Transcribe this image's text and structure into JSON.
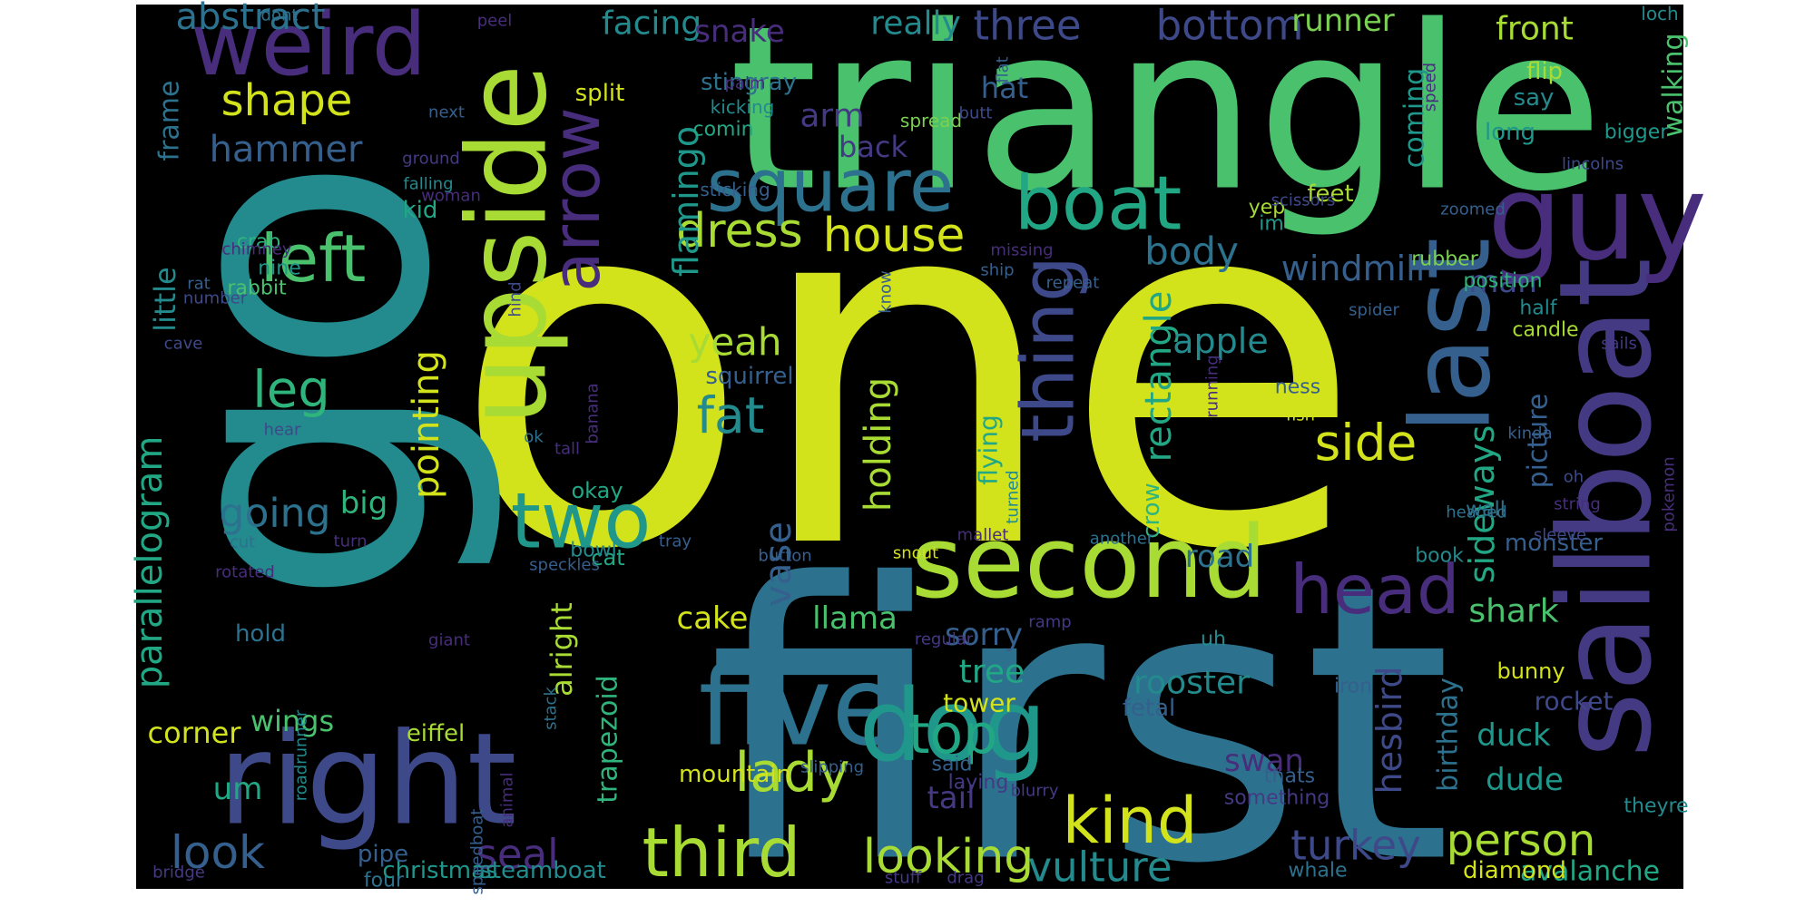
{
  "palette": {
    "background": "#000000",
    "page": "#ffffff",
    "words": [
      "#d2e21b",
      "#a8db34",
      "#7ad151",
      "#4ac16d",
      "#2fb47c",
      "#22a785",
      "#1f988b",
      "#238a8d",
      "#2c728e",
      "#355f8d",
      "#3e4989",
      "#443983",
      "#472d7b",
      "#48186a"
    ]
  },
  "words": [
    {
      "text": "one",
      "weight": 1.0,
      "color": 0
    },
    {
      "text": "first",
      "weight": 0.8,
      "color": 8
    },
    {
      "text": "go",
      "weight": 0.78,
      "color": 7
    },
    {
      "text": "triangle",
      "weight": 0.6,
      "color": 3
    },
    {
      "text": "upside",
      "weight": 0.35,
      "color": 1
    },
    {
      "text": "second",
      "weight": 0.28,
      "color": 1
    },
    {
      "text": "right",
      "weight": 0.3,
      "color": 10
    },
    {
      "text": "five",
      "weight": 0.27,
      "color": 8
    },
    {
      "text": "dog",
      "weight": 0.27,
      "color": 6
    },
    {
      "text": "sailboat",
      "weight": 0.27,
      "color": 11
    },
    {
      "text": "last",
      "weight": 0.27,
      "color": 9
    },
    {
      "text": "guy",
      "weight": 0.27,
      "color": 12
    },
    {
      "text": "weird",
      "weight": 0.2,
      "color": 12
    },
    {
      "text": "square",
      "weight": 0.17,
      "color": 8
    },
    {
      "text": "boat",
      "weight": 0.17,
      "color": 5
    },
    {
      "text": "two",
      "weight": 0.17,
      "color": 6
    },
    {
      "text": "thing",
      "weight": 0.17,
      "color": 10
    },
    {
      "text": "arrow",
      "weight": 0.17,
      "color": 12
    },
    {
      "text": "head",
      "weight": 0.16,
      "color": 12
    },
    {
      "text": "third",
      "weight": 0.15,
      "color": 1
    },
    {
      "text": "kind",
      "weight": 0.15,
      "color": 0
    },
    {
      "text": "top",
      "weight": 0.15,
      "color": 5
    },
    {
      "text": "left",
      "weight": 0.15,
      "color": 3
    },
    {
      "text": "house",
      "weight": 0.12,
      "color": 0
    },
    {
      "text": "dress",
      "weight": 0.12,
      "color": 1
    },
    {
      "text": "side",
      "weight": 0.12,
      "color": 0
    },
    {
      "text": "lady",
      "weight": 0.12,
      "color": 1
    },
    {
      "text": "looking",
      "weight": 0.12,
      "color": 1
    },
    {
      "text": "person",
      "weight": 0.11,
      "color": 1
    },
    {
      "text": "fat",
      "weight": 0.12,
      "color": 7
    },
    {
      "text": "leg",
      "weight": 0.12,
      "color": 4
    },
    {
      "text": "shape",
      "weight": 0.11,
      "color": 0
    },
    {
      "text": "look",
      "weight": 0.11,
      "color": 9
    },
    {
      "text": "vulture",
      "weight": 0.1,
      "color": 7
    },
    {
      "text": "turkey",
      "weight": 0.1,
      "color": 10
    },
    {
      "text": "three",
      "weight": 0.1,
      "color": 10
    },
    {
      "text": "bottom",
      "weight": 0.1,
      "color": 10
    },
    {
      "text": "seal",
      "weight": 0.1,
      "color": 12
    },
    {
      "text": "going",
      "weight": 0.09,
      "color": 8
    },
    {
      "text": "yeah",
      "weight": 0.09,
      "color": 1
    },
    {
      "text": "body",
      "weight": 0.09,
      "color": 8
    },
    {
      "text": "hammer",
      "weight": 0.09,
      "color": 9
    },
    {
      "text": "parallelogram",
      "weight": 0.09,
      "color": 5
    },
    {
      "text": "rectangle",
      "weight": 0.09,
      "color": 5
    },
    {
      "text": "holding",
      "weight": 0.09,
      "color": 1
    },
    {
      "text": "pointing",
      "weight": 0.09,
      "color": 0
    },
    {
      "text": "vase",
      "weight": 0.09,
      "color": 9
    },
    {
      "text": "flamingo",
      "weight": 0.09,
      "color": 6
    },
    {
      "text": "hesbird",
      "weight": 0.09,
      "color": 10
    },
    {
      "text": "sideways",
      "weight": 0.09,
      "color": 5
    },
    {
      "text": "windmill",
      "weight": 0.08,
      "color": 9
    },
    {
      "text": "apple",
      "weight": 0.08,
      "color": 7
    },
    {
      "text": "front",
      "weight": 0.08,
      "color": 1
    },
    {
      "text": "really",
      "weight": 0.08,
      "color": 7
    },
    {
      "text": "facing",
      "weight": 0.08,
      "color": 7
    },
    {
      "text": "snake",
      "weight": 0.08,
      "color": 12
    },
    {
      "text": "runner",
      "weight": 0.07,
      "color": 2
    },
    {
      "text": "arm",
      "weight": 0.08,
      "color": 11
    },
    {
      "text": "tree",
      "weight": 0.08,
      "color": 5
    },
    {
      "text": "rooster",
      "weight": 0.08,
      "color": 7
    },
    {
      "text": "shark",
      "weight": 0.08,
      "color": 3
    },
    {
      "text": "road",
      "weight": 0.07,
      "color": 8
    },
    {
      "text": "cake",
      "weight": 0.07,
      "color": 0
    },
    {
      "text": "llama",
      "weight": 0.07,
      "color": 3
    },
    {
      "text": "sorry",
      "weight": 0.07,
      "color": 9
    },
    {
      "text": "swan",
      "weight": 0.07,
      "color": 12
    },
    {
      "text": "duck",
      "weight": 0.07,
      "color": 6
    },
    {
      "text": "dude",
      "weight": 0.07,
      "color": 6
    },
    {
      "text": "big",
      "weight": 0.07,
      "color": 4
    },
    {
      "text": "um",
      "weight": 0.07,
      "color": 5
    },
    {
      "text": "man",
      "weight": 0.07,
      "color": 10
    },
    {
      "text": "tail",
      "weight": 0.07,
      "color": 11
    },
    {
      "text": "hat",
      "weight": 0.07,
      "color": 9
    },
    {
      "text": "back",
      "weight": 0.07,
      "color": 11
    },
    {
      "text": "wings",
      "weight": 0.06,
      "color": 3
    },
    {
      "text": "corner",
      "weight": 0.06,
      "color": 0
    },
    {
      "text": "avalanche",
      "weight": 0.06,
      "color": 5
    },
    {
      "text": "little",
      "weight": 0.06,
      "color": 7
    },
    {
      "text": "frame",
      "weight": 0.06,
      "color": 8
    },
    {
      "text": "alright",
      "weight": 0.07,
      "color": 1
    },
    {
      "text": "trapezoid",
      "weight": 0.06,
      "color": 4
    },
    {
      "text": "birthday",
      "weight": 0.06,
      "color": 8
    },
    {
      "text": "walking",
      "weight": 0.05,
      "color": 3
    },
    {
      "text": "coming",
      "weight": 0.05,
      "color": 6
    },
    {
      "text": "picture",
      "weight": 0.05,
      "color": 9
    },
    {
      "text": "flying",
      "weight": 0.05,
      "color": 5
    },
    {
      "text": "tower",
      "weight": 0.05,
      "color": 0
    },
    {
      "text": "diamond",
      "weight": 0.04,
      "color": 0
    },
    {
      "text": "christmas",
      "weight": 0.04,
      "color": 6
    },
    {
      "text": "steamboat",
      "weight": 0.04,
      "color": 7
    },
    {
      "text": "monster",
      "weight": 0.04,
      "color": 9
    },
    {
      "text": "squirrel",
      "weight": 0.04,
      "color": 9
    },
    {
      "text": "crow",
      "weight": 0.04,
      "color": 4
    },
    {
      "text": "fetal",
      "weight": 0.04,
      "color": 9
    },
    {
      "text": "rocket",
      "weight": 0.04,
      "color": 10
    },
    {
      "text": "mountain",
      "weight": 0.035,
      "color": 0
    },
    {
      "text": "split",
      "weight": 0.04,
      "color": 0
    },
    {
      "text": "stingray",
      "weight": 0.04,
      "color": 8
    },
    {
      "text": "flip",
      "weight": 0.04,
      "color": 1
    },
    {
      "text": "say",
      "weight": 0.04,
      "color": 7
    },
    {
      "text": "long",
      "weight": 0.04,
      "color": 6
    },
    {
      "text": "feet",
      "weight": 0.04,
      "color": 1
    },
    {
      "text": "kid",
      "weight": 0.035,
      "color": 5
    },
    {
      "text": "hold",
      "weight": 0.04,
      "color": 8
    },
    {
      "text": "eiffel",
      "weight": 0.035,
      "color": 1
    },
    {
      "text": "pipe",
      "weight": 0.04,
      "color": 9
    },
    {
      "text": "four",
      "weight": 0.03,
      "color": 8
    },
    {
      "text": "okay",
      "weight": 0.035,
      "color": 5
    },
    {
      "text": "cat",
      "weight": 0.03,
      "color": 5
    },
    {
      "text": "nine",
      "weight": 0.03,
      "color": 6
    },
    {
      "text": "crab",
      "weight": 0.03,
      "color": 4
    },
    {
      "text": "rabbit",
      "weight": 0.03,
      "color": 3
    },
    {
      "text": "bunny",
      "weight": 0.035,
      "color": 0
    },
    {
      "text": "book",
      "weight": 0.035,
      "color": 7
    },
    {
      "text": "iron",
      "weight": 0.03,
      "color": 9
    },
    {
      "text": "whale",
      "weight": 0.035,
      "color": 8
    },
    {
      "text": "uh",
      "weight": 0.035,
      "color": 7
    },
    {
      "text": "position",
      "weight": 0.035,
      "color": 4
    },
    {
      "text": "rubber",
      "weight": 0.035,
      "color": 2
    },
    {
      "text": "yep",
      "weight": 0.03,
      "color": 1
    },
    {
      "text": "im",
      "weight": 0.035,
      "color": 6
    },
    {
      "text": "ness",
      "weight": 0.03,
      "color": 9
    },
    {
      "text": "wall",
      "weight": 0.035,
      "color": 8
    },
    {
      "text": "bigger",
      "weight": 0.03,
      "color": 6
    },
    {
      "text": "candle",
      "weight": 0.03,
      "color": 1
    },
    {
      "text": "half",
      "weight": 0.03,
      "color": 7
    },
    {
      "text": "bowl",
      "weight": 0.03,
      "color": 7
    },
    {
      "text": "theyre",
      "weight": 0.03,
      "color": 7
    },
    {
      "text": "laying",
      "weight": 0.03,
      "color": 11
    },
    {
      "text": "said",
      "weight": 0.03,
      "color": 9
    },
    {
      "text": "something",
      "weight": 0.035,
      "color": 11
    },
    {
      "text": "thats",
      "weight": 0.025,
      "color": 9
    },
    {
      "text": "comin",
      "weight": 0.025,
      "color": 5
    },
    {
      "text": "kicking",
      "weight": 0.03,
      "color": 7
    },
    {
      "text": "spread",
      "weight": 0.025,
      "color": 2
    },
    {
      "text": "loch",
      "weight": 0.025,
      "color": 7
    },
    {
      "text": "sticking",
      "weight": 0.025,
      "color": 9
    },
    {
      "text": "falling",
      "weight": 0.025,
      "color": 7
    },
    {
      "text": "next",
      "weight": 0.02,
      "color": 9
    },
    {
      "text": "ground",
      "weight": 0.02,
      "color": 11
    },
    {
      "text": "butt",
      "weight": 0.02,
      "color": 10
    },
    {
      "text": "palm",
      "weight": 0.02,
      "color": 12
    },
    {
      "text": "flat",
      "weight": 0.02,
      "color": 9
    },
    {
      "text": "speed",
      "weight": 0.02,
      "color": 12
    },
    {
      "text": "peel",
      "weight": 0.02,
      "color": 12
    },
    {
      "text": "dont",
      "weight": 0.02,
      "color": 8
    },
    {
      "text": "lincolns",
      "weight": 0.02,
      "color": 10
    },
    {
      "text": "scissors",
      "weight": 0.02,
      "color": 10
    },
    {
      "text": "zoomed",
      "weight": 0.02,
      "color": 9
    },
    {
      "text": "missing",
      "weight": 0.02,
      "color": 12
    },
    {
      "text": "chimney",
      "weight": 0.02,
      "color": 12
    },
    {
      "text": "woman",
      "weight": 0.02,
      "color": 12
    },
    {
      "text": "rat",
      "weight": 0.02,
      "color": 9
    },
    {
      "text": "number",
      "weight": 0.02,
      "color": 10
    },
    {
      "text": "repeat",
      "weight": 0.02,
      "color": 9
    },
    {
      "text": "know",
      "weight": 0.02,
      "color": 9
    },
    {
      "text": "ship",
      "weight": 0.02,
      "color": 9
    },
    {
      "text": "hind",
      "weight": 0.02,
      "color": 10
    },
    {
      "text": "banana",
      "weight": 0.02,
      "color": 12
    },
    {
      "text": "running",
      "weight": 0.02,
      "color": 12
    },
    {
      "text": "sails",
      "weight": 0.02,
      "color": 11
    },
    {
      "text": "spider",
      "weight": 0.02,
      "color": 9
    },
    {
      "text": "fish",
      "weight": 0.02,
      "color": 0
    },
    {
      "text": "kinda",
      "weight": 0.02,
      "color": 9
    },
    {
      "text": "oh",
      "weight": 0.02,
      "color": 10
    },
    {
      "text": "sleeve",
      "weight": 0.02,
      "color": 10
    },
    {
      "text": "string",
      "weight": 0.02,
      "color": 12
    },
    {
      "text": "cave",
      "weight": 0.02,
      "color": 10
    },
    {
      "text": "hear",
      "weight": 0.02,
      "color": 10
    },
    {
      "text": "ok",
      "weight": 0.02,
      "color": 8
    },
    {
      "text": "tall",
      "weight": 0.02,
      "color": 12
    },
    {
      "text": "turned",
      "weight": 0.02,
      "color": 7
    },
    {
      "text": "headed",
      "weight": 0.02,
      "color": 8
    },
    {
      "text": "cut",
      "weight": 0.02,
      "color": 8
    },
    {
      "text": "turn",
      "weight": 0.02,
      "color": 12
    },
    {
      "text": "tray",
      "weight": 0.02,
      "color": 9
    },
    {
      "text": "snout",
      "weight": 0.02,
      "color": 0
    },
    {
      "text": "mallet",
      "weight": 0.02,
      "color": 12
    },
    {
      "text": "another",
      "weight": 0.02,
      "color": 8
    },
    {
      "text": "button",
      "weight": 0.02,
      "color": 9
    },
    {
      "text": "speckles",
      "weight": 0.02,
      "color": 9
    },
    {
      "text": "rotated",
      "weight": 0.02,
      "color": 12
    },
    {
      "text": "giant",
      "weight": 0.02,
      "color": 12
    },
    {
      "text": "ramp",
      "weight": 0.02,
      "color": 11
    },
    {
      "text": "regular",
      "weight": 0.02,
      "color": 11
    },
    {
      "text": "stack",
      "weight": 0.02,
      "color": 8
    },
    {
      "text": "roadrunner",
      "weight": 0.02,
      "color": 7
    },
    {
      "text": "animal",
      "weight": 0.02,
      "color": 12
    },
    {
      "text": "speedboat",
      "weight": 0.02,
      "color": 9
    },
    {
      "text": "bridge",
      "weight": 0.02,
      "color": 11
    },
    {
      "text": "stuff",
      "weight": 0.02,
      "color": 11
    },
    {
      "text": "drag",
      "weight": 0.02,
      "color": 11
    },
    {
      "text": "blurry",
      "weight": 0.02,
      "color": 11
    },
    {
      "text": "slipping",
      "weight": 0.02,
      "color": 9
    },
    {
      "text": "pokemon",
      "weight": 0.02,
      "color": 12
    },
    {
      "text": "abstract",
      "weight": 0.02,
      "color": 8
    },
    {
      "text": "query",
      "weight": 0.02,
      "color": 12
    },
    {
      "text": "standing",
      "weight": 0.02,
      "color": 12
    },
    {
      "text": "-",
      "weight": 0.05,
      "color": 1
    }
  ]
}
